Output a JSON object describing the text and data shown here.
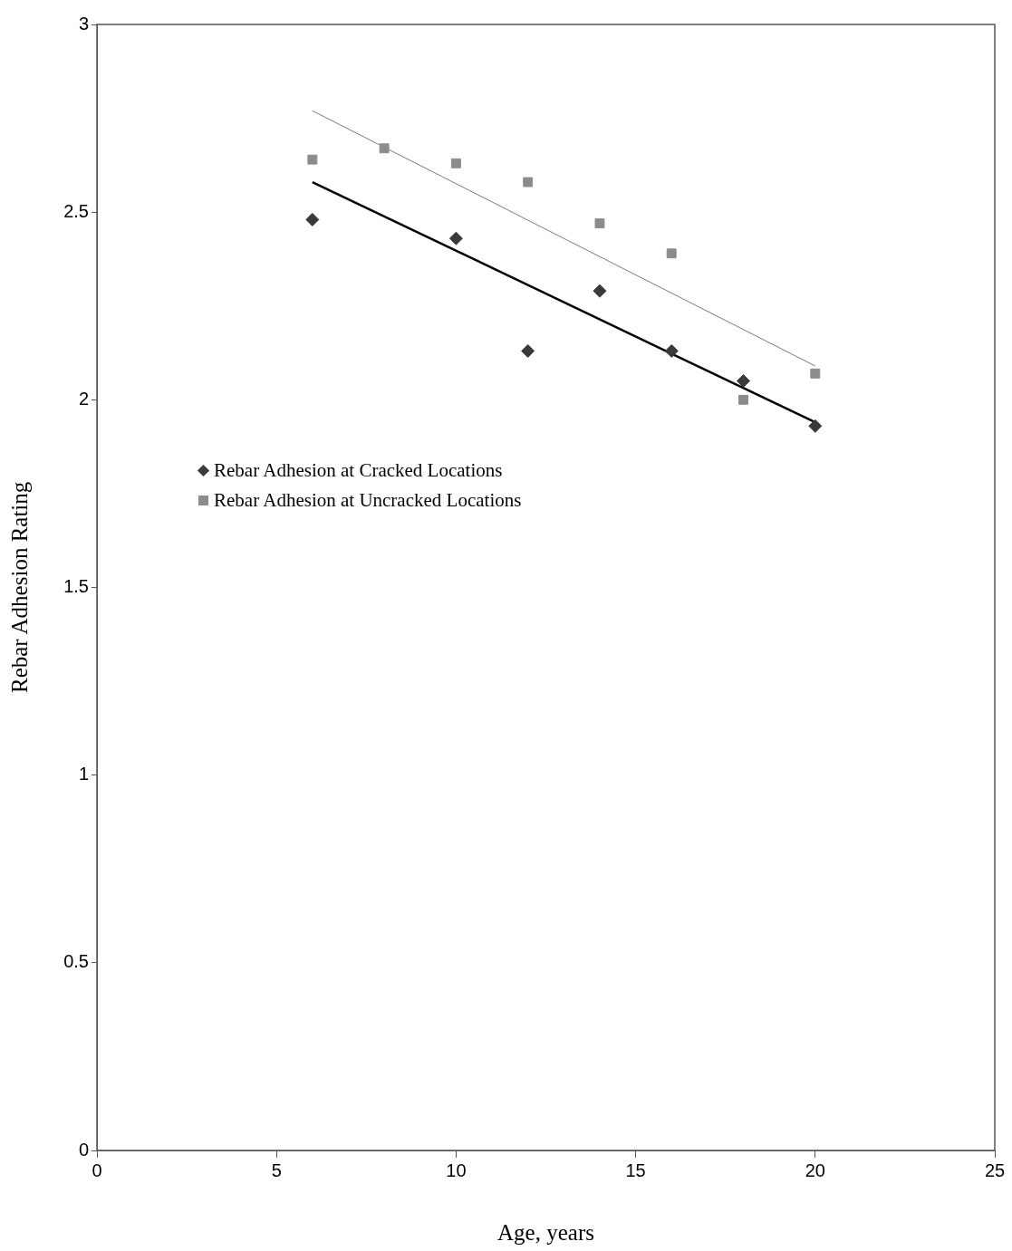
{
  "chart_data": {
    "type": "scatter",
    "xlabel": "Age, years",
    "ylabel": "Rebar Adhesion Rating",
    "xlim": [
      0,
      25
    ],
    "xticks": [
      0,
      5,
      10,
      15,
      20,
      25
    ],
    "ylim": [
      0,
      3
    ],
    "yticks": [
      0,
      0.5,
      1,
      1.5,
      2,
      2.5,
      3
    ],
    "grid": false,
    "legend": "left",
    "series": [
      {
        "name": "Rebar Adhesion at Cracked Locations",
        "color": "#3a3a3a",
        "marker": "diamond",
        "x": [
          6,
          10,
          12,
          14,
          16,
          18,
          20
        ],
        "values": [
          2.48,
          2.43,
          2.13,
          2.29,
          2.13,
          2.05,
          1.93
        ]
      },
      {
        "name": "Rebar Adhesion at Uncracked Locations",
        "color": "#8c8c8c",
        "marker": "square",
        "x": [
          6,
          8,
          10,
          12,
          14,
          16,
          18,
          20
        ],
        "values": [
          2.64,
          2.67,
          2.63,
          2.58,
          2.47,
          2.39,
          2.0,
          2.07
        ]
      },
      {
        "type": "line",
        "color": "#000000",
        "marker": "none",
        "x": [
          6,
          20
        ],
        "values": [
          2.58,
          1.94
        ]
      },
      {
        "type": "line",
        "color": "#7a7a7a",
        "marker": "none",
        "x": [
          6,
          20
        ],
        "values": [
          2.77,
          2.09
        ]
      }
    ]
  }
}
